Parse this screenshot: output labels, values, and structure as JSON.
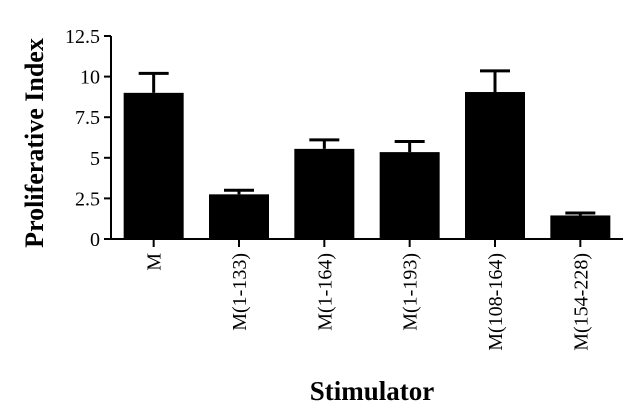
{
  "chart_data": {
    "type": "bar",
    "xlabel": "Stimulator",
    "ylabel": "Proliferative  Index",
    "categories": [
      "M",
      "M(1-133)",
      "M(1-164)",
      "M(1-193)",
      "M(108-164)",
      "M(154-228)"
    ],
    "values": [
      9.0,
      2.75,
      5.55,
      5.35,
      9.05,
      1.45
    ],
    "errors": [
      1.2,
      0.25,
      0.55,
      0.65,
      1.3,
      0.15
    ],
    "ylim": [
      0,
      12.5
    ],
    "yticks": [
      "0",
      "2.5",
      "5",
      "7.5",
      "10",
      "12.5"
    ],
    "ytick_values": [
      0,
      2.5,
      5,
      7.5,
      10,
      12.5
    ],
    "grid": false,
    "bar_color": "#000000"
  }
}
